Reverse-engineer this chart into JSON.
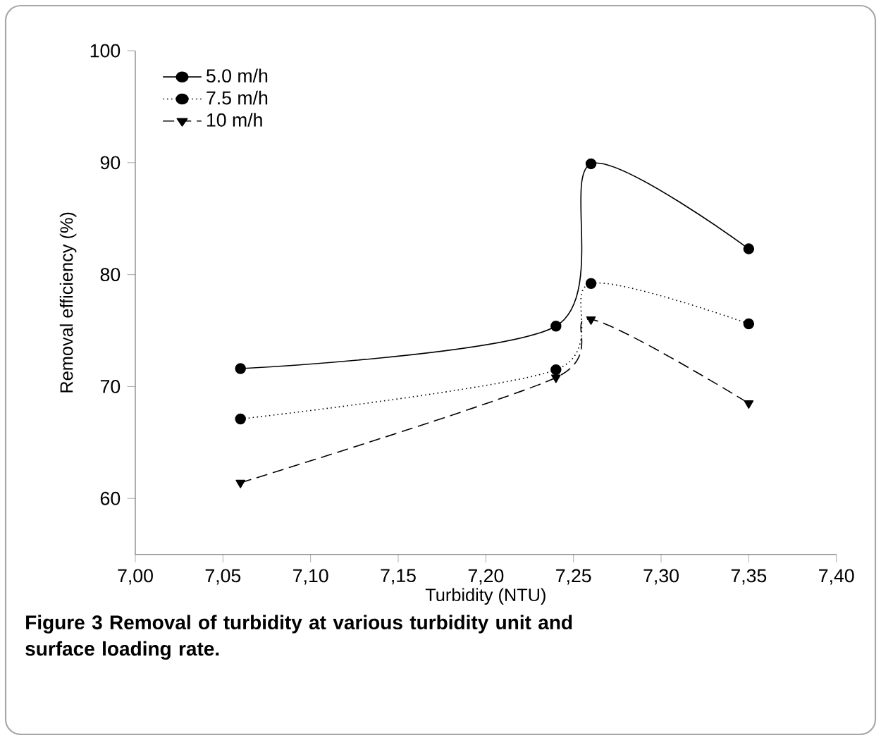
{
  "chart_data": {
    "type": "line",
    "xlabel": "Turbidity (NTU)",
    "ylabel": "Removal efficiency (%)",
    "x": [
      7.06,
      7.24,
      7.26,
      7.35
    ],
    "series": [
      {
        "name": "5.0 m/h",
        "color": "#000000",
        "marker": "circle",
        "line_style": "solid",
        "values": [
          71.6,
          75.4,
          89.9,
          82.3
        ]
      },
      {
        "name": "7.5 m/h",
        "color": "#000000",
        "marker": "circle",
        "line_style": "dotted",
        "values": [
          67.1,
          71.5,
          79.2,
          75.6
        ]
      },
      {
        "name": "10 m/h",
        "color": "#000000",
        "marker": "triangle",
        "line_style": "dashed",
        "values": [
          61.4,
          70.8,
          76.0,
          68.5
        ]
      }
    ],
    "xlim": [
      7.0,
      7.4
    ],
    "ylim": [
      55,
      100
    ],
    "xticks": [
      {
        "value": 7.0,
        "label": "7,00"
      },
      {
        "value": 7.05,
        "label": "7,05"
      },
      {
        "value": 7.1,
        "label": "7,10"
      },
      {
        "value": 7.15,
        "label": "7,15"
      },
      {
        "value": 7.2,
        "label": "7,20"
      },
      {
        "value": 7.25,
        "label": "7,25"
      },
      {
        "value": 7.3,
        "label": "7,30"
      },
      {
        "value": 7.35,
        "label": "7,35"
      },
      {
        "value": 7.4,
        "label": "7,40"
      }
    ],
    "yticks": [
      60,
      70,
      80,
      90,
      100
    ],
    "legend": "top left",
    "grid": false,
    "annotations": [
      "Figure 3 Removal of turbidity at various turbidity unit and surface loading rate."
    ]
  }
}
